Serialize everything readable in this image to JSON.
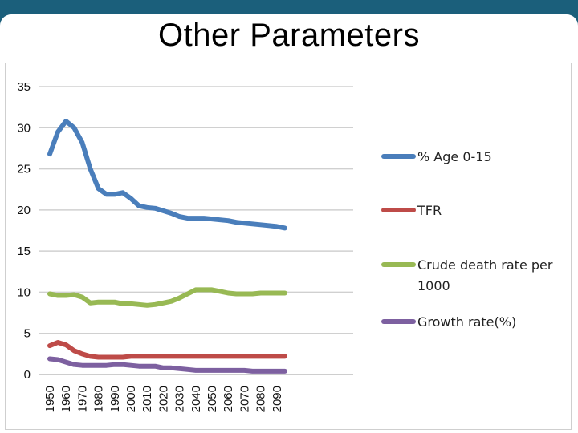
{
  "slide": {
    "title": "Other Parameters"
  },
  "chart_data": {
    "type": "line",
    "title": "",
    "xlabel": "",
    "ylabel": "",
    "ylim": [
      0,
      35
    ],
    "yticks": [
      0,
      5,
      10,
      15,
      20,
      25,
      30,
      35
    ],
    "x": [
      1950,
      1955,
      1960,
      1965,
      1970,
      1975,
      1980,
      1985,
      1990,
      1995,
      2000,
      2005,
      2010,
      2015,
      2020,
      2025,
      2030,
      2035,
      2040,
      2045,
      2050,
      2055,
      2060,
      2065,
      2070,
      2075,
      2080,
      2085,
      2090,
      2095
    ],
    "xticks": [
      "1950",
      "1960",
      "1970",
      "1980",
      "1990",
      "2000",
      "2010",
      "2020",
      "2030",
      "2040",
      "2050",
      "2060",
      "2070",
      "2080",
      "2090"
    ],
    "grid": true,
    "legend_position": "right",
    "series": [
      {
        "name": "% Age 0-15",
        "color": "#4a7ebb",
        "values": [
          26.8,
          29.5,
          30.8,
          30.0,
          28.2,
          25.0,
          22.6,
          21.9,
          21.9,
          22.1,
          21.4,
          20.5,
          20.3,
          20.2,
          19.9,
          19.6,
          19.2,
          19.0,
          19.0,
          19.0,
          18.9,
          18.8,
          18.7,
          18.5,
          18.4,
          18.3,
          18.2,
          18.1,
          18.0,
          17.8
        ]
      },
      {
        "name": "TFR",
        "color": "#be4b48",
        "values": [
          3.5,
          3.9,
          3.6,
          2.9,
          2.5,
          2.2,
          2.1,
          2.1,
          2.1,
          2.1,
          2.2,
          2.2,
          2.2,
          2.2,
          2.2,
          2.2,
          2.2,
          2.2,
          2.2,
          2.2,
          2.2,
          2.2,
          2.2,
          2.2,
          2.2,
          2.2,
          2.2,
          2.2,
          2.2,
          2.2
        ]
      },
      {
        "name": "Crude death rate per 1000",
        "color": "#98b954",
        "values": [
          9.8,
          9.6,
          9.6,
          9.7,
          9.4,
          8.7,
          8.8,
          8.8,
          8.8,
          8.6,
          8.6,
          8.5,
          8.4,
          8.5,
          8.7,
          8.9,
          9.3,
          9.8,
          10.3,
          10.3,
          10.3,
          10.1,
          9.9,
          9.8,
          9.8,
          9.8,
          9.9,
          9.9,
          9.9,
          9.9
        ]
      },
      {
        "name": "Growth rate(%)",
        "color": "#7d60a0",
        "values": [
          1.9,
          1.8,
          1.5,
          1.2,
          1.1,
          1.1,
          1.1,
          1.1,
          1.2,
          1.2,
          1.1,
          1.0,
          1.0,
          1.0,
          0.8,
          0.8,
          0.7,
          0.6,
          0.5,
          0.5,
          0.5,
          0.5,
          0.5,
          0.5,
          0.5,
          0.4,
          0.4,
          0.4,
          0.4,
          0.4
        ]
      }
    ]
  }
}
